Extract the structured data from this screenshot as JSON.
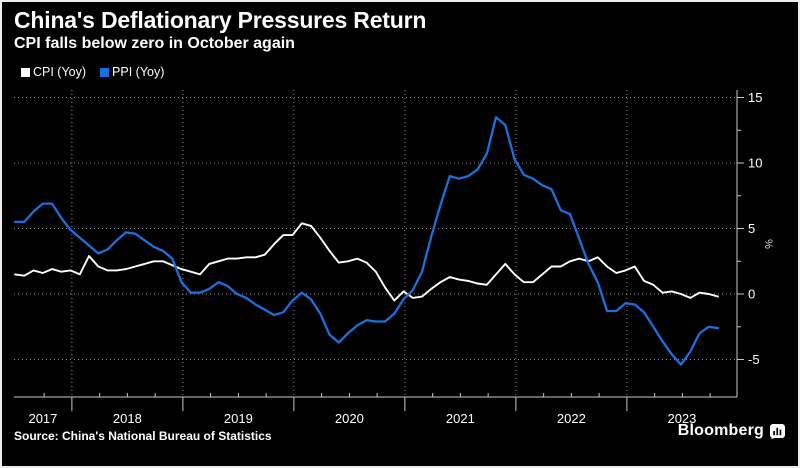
{
  "header": {
    "title": "China's Deflationary Pressures Return",
    "subtitle": "CPI falls below zero in October again"
  },
  "footer": {
    "source": "Source: China's National Bureau of Statistics",
    "brand": "Bloomberg"
  },
  "colors": {
    "background": "#000000",
    "cpi_line": "#ffffff",
    "ppi_line": "#1a70dc",
    "gridline": "#8a8a8a",
    "axis": "#c9c9c9"
  },
  "chart_data": {
    "type": "line",
    "x_unit": "month",
    "x_start": "2017-06",
    "x_end": "2023-10",
    "x_tick_labels": [
      "2017",
      "2018",
      "2019",
      "2020",
      "2021",
      "2022",
      "2023"
    ],
    "y_ticks": [
      15,
      10,
      5,
      0,
      -5
    ],
    "ylabel": "%",
    "ylim": [
      -7.8,
      15.7
    ],
    "grid": "dotted",
    "legend_position": "top-left",
    "series": [
      {
        "name": "CPI (Yoy)",
        "color": "#ffffff",
        "values": [
          1.5,
          1.4,
          1.8,
          1.6,
          1.9,
          1.7,
          1.8,
          1.5,
          2.9,
          2.1,
          1.8,
          1.8,
          1.9,
          2.1,
          2.3,
          2.5,
          2.5,
          2.2,
          1.9,
          1.7,
          1.5,
          2.3,
          2.5,
          2.7,
          2.7,
          2.8,
          2.8,
          3.0,
          3.8,
          4.5,
          4.5,
          5.4,
          5.2,
          4.3,
          3.3,
          2.4,
          2.5,
          2.7,
          2.4,
          1.7,
          0.5,
          -0.5,
          0.2,
          -0.3,
          -0.2,
          0.4,
          0.9,
          1.3,
          1.1,
          1.0,
          0.8,
          0.7,
          1.5,
          2.3,
          1.5,
          0.9,
          0.9,
          1.5,
          2.1,
          2.1,
          2.5,
          2.7,
          2.5,
          2.8,
          2.1,
          1.6,
          1.8,
          2.1,
          1.0,
          0.7,
          0.1,
          0.2,
          0.0,
          -0.3,
          0.1,
          0.0,
          -0.2
        ]
      },
      {
        "name": "PPI (Yoy)",
        "color": "#1a70dc",
        "values": [
          5.5,
          5.5,
          6.3,
          6.9,
          6.9,
          5.8,
          4.9,
          4.3,
          3.7,
          3.1,
          3.4,
          4.1,
          4.7,
          4.6,
          4.1,
          3.6,
          3.3,
          2.7,
          0.9,
          0.1,
          0.1,
          0.4,
          0.9,
          0.6,
          0.0,
          -0.3,
          -0.8,
          -1.2,
          -1.6,
          -1.4,
          -0.5,
          0.1,
          -0.4,
          -1.5,
          -3.1,
          -3.7,
          -3.0,
          -2.4,
          -2.0,
          -2.1,
          -2.1,
          -1.5,
          -0.4,
          0.3,
          1.7,
          4.4,
          6.8,
          9.0,
          8.8,
          9.0,
          9.5,
          10.7,
          13.5,
          12.9,
          10.3,
          9.1,
          8.8,
          8.3,
          8.0,
          6.4,
          6.1,
          4.2,
          2.3,
          0.9,
          -1.3,
          -1.3,
          -0.7,
          -0.8,
          -1.4,
          -2.5,
          -3.6,
          -4.6,
          -5.4,
          -4.4,
          -3.0,
          -2.5,
          -2.6
        ]
      }
    ]
  }
}
